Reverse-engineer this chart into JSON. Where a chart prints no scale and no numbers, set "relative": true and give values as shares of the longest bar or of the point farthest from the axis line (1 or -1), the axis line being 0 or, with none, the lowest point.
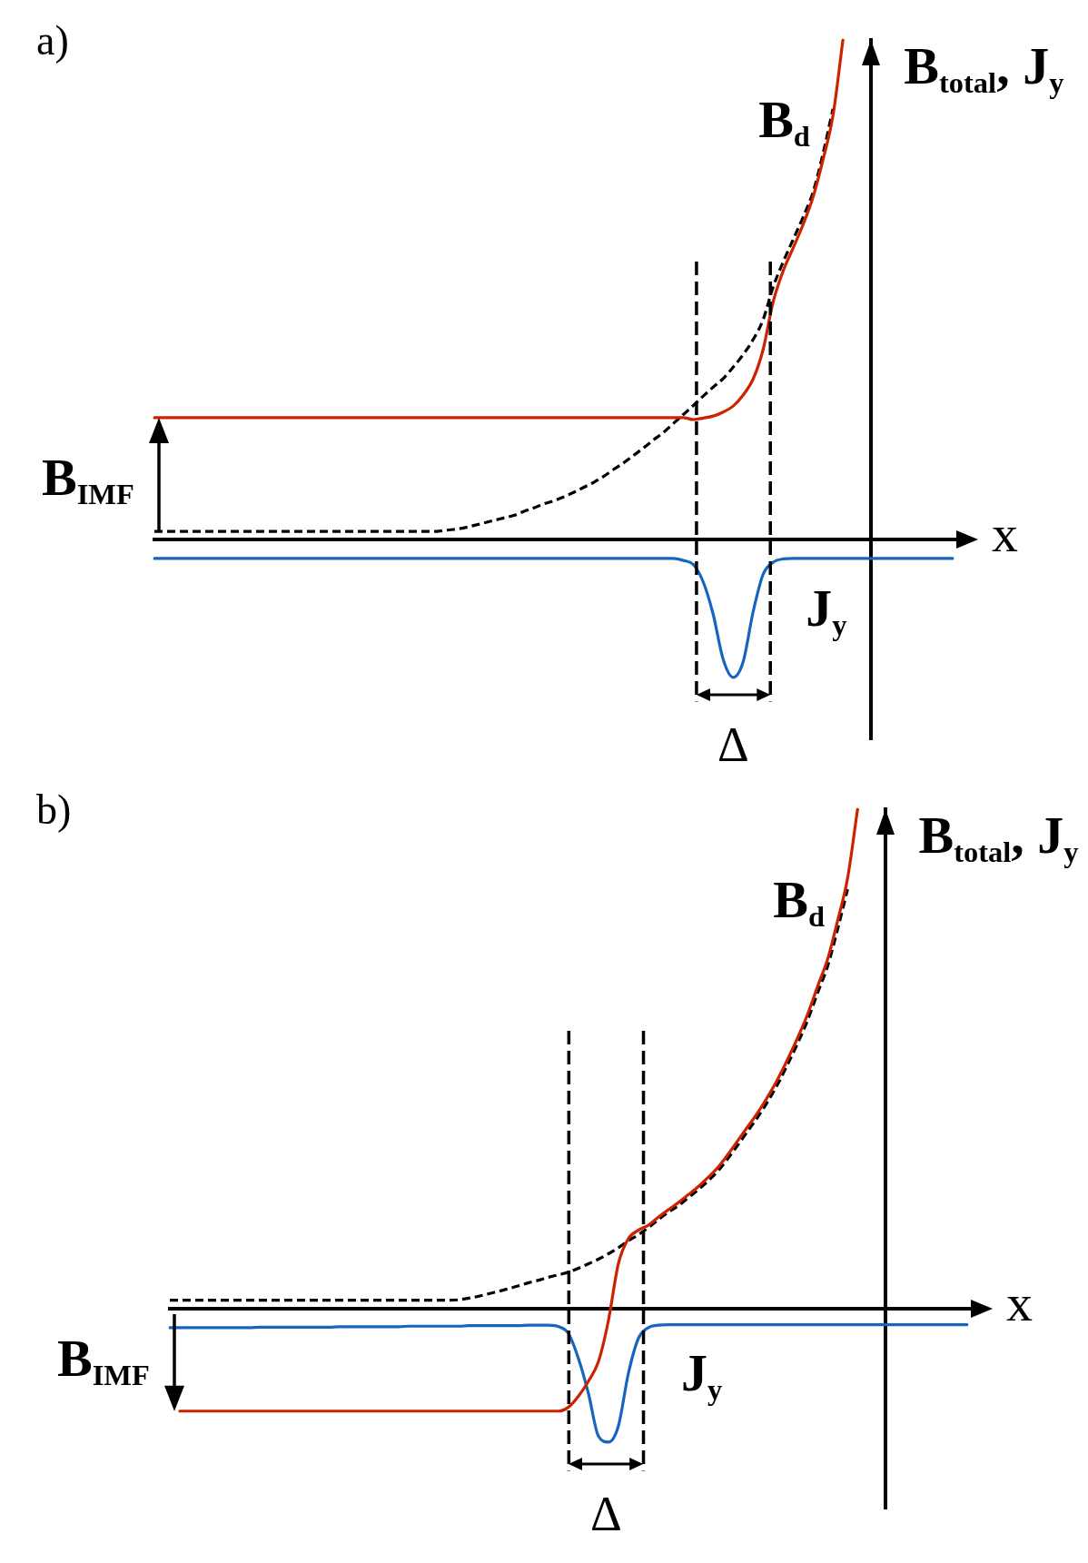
{
  "chart_data": [
    {
      "type": "line",
      "title": "a)",
      "xlabel": "x",
      "ylabel": "B$_{total}$, J$_{y}$",
      "relative": true,
      "categories": [
        null,
        null,
        null,
        null,
        null,
        null,
        null,
        null,
        null,
        null,
        null,
        null,
        null,
        null,
        null,
        null,
        null,
        null,
        null,
        null,
        null,
        null,
        null,
        null,
        null,
        null,
        null,
        null,
        null,
        null,
        null,
        null,
        null,
        null,
        null,
        null,
        null,
        null,
        null,
        null,
        null,
        null,
        null,
        null,
        null,
        null,
        null,
        null,
        null,
        null,
        null,
        null,
        null,
        null,
        null,
        null,
        null,
        null,
        null,
        null,
        null,
        null,
        null,
        null,
        null,
        null,
        null,
        null,
        null,
        null,
        null,
        null,
        null,
        null,
        null,
        null,
        null,
        null,
        null,
        null,
        null
      ],
      "series": [
        {
          "color": "#cc2200",
          "values": [
            0.244,
            0.244,
            0.244,
            0.244,
            0.244,
            0.244,
            0.244,
            0.244,
            0.244,
            0.244,
            0.244,
            0.244,
            0.244,
            0.244,
            0.244,
            0.244,
            0.244,
            0.244,
            0.244,
            0.244,
            0.244,
            0.244,
            0.244,
            0.244,
            0.244,
            0.244,
            0.244,
            0.244,
            0.244,
            0.244,
            0.244,
            0.244,
            0.244,
            0.244,
            0.244,
            0.244,
            0.244,
            0.244,
            0.244,
            0.244,
            0.244,
            0.244,
            0.244,
            0.244,
            0.244,
            0.244,
            0.244,
            0.244,
            0.244,
            0.244,
            0.244,
            0.244,
            0.244,
            0.244,
            0.24,
            0.243,
            0.247,
            0.255,
            0.267,
            0.289,
            0.321,
            0.38,
            0.475,
            0.537,
            0.583,
            0.63,
            0.685,
            0.76,
            0.848,
            1,
            null,
            null,
            null,
            null,
            null,
            null,
            null,
            null,
            null,
            null,
            null
          ]
        },
        {
          "name": "B$_{d}$",
          "color": "#000000",
          "line_style": "dashed",
          "values": [
            0.016,
            0.016,
            0.016,
            0.016,
            0.016,
            0.016,
            0.016,
            0.016,
            0.016,
            0.016,
            0.016,
            0.016,
            0.016,
            0.016,
            0.016,
            0.016,
            0.016,
            0.016,
            0.016,
            0.016,
            0.016,
            0.016,
            0.016,
            0.016,
            0.016,
            0.016,
            0.016,
            0.016,
            0.016,
            0.018,
            0.02,
            0.023,
            0.028,
            0.033,
            0.038,
            0.043,
            0.048,
            0.056,
            0.063,
            0.071,
            0.077,
            0.085,
            0.094,
            0.104,
            0.114,
            0.126,
            0.14,
            0.153,
            0.168,
            0.183,
            0.199,
            0.214,
            0.232,
            0.25,
            0.268,
            0.287,
            0.305,
            0.322,
            0.345,
            0.37,
            0.4,
            0.44,
            0.505,
            0.555,
            0.6,
            0.645,
            0.695,
            0.772,
            0.862,
            null,
            null,
            null,
            null,
            null,
            null,
            null,
            null,
            null,
            null,
            null,
            null
          ]
        },
        {
          "name": "J$_{y}$",
          "color": "#1565c0",
          "values": [
            -0.038,
            -0.038,
            -0.038,
            -0.038,
            -0.038,
            -0.038,
            -0.038,
            -0.038,
            -0.038,
            -0.038,
            -0.038,
            -0.038,
            -0.038,
            -0.038,
            -0.038,
            -0.038,
            -0.038,
            -0.038,
            -0.038,
            -0.038,
            -0.038,
            -0.038,
            -0.038,
            -0.038,
            -0.038,
            -0.038,
            -0.038,
            -0.038,
            -0.038,
            -0.038,
            -0.038,
            -0.038,
            -0.038,
            -0.038,
            -0.038,
            -0.038,
            -0.038,
            -0.038,
            -0.038,
            -0.038,
            -0.038,
            -0.038,
            -0.038,
            -0.038,
            -0.038,
            -0.038,
            -0.038,
            -0.038,
            -0.038,
            -0.038,
            -0.038,
            -0.038,
            -0.038,
            -0.042,
            -0.05,
            -0.085,
            -0.15,
            -0.24,
            -0.276,
            -0.245,
            -0.145,
            -0.07,
            -0.046,
            -0.039,
            -0.038,
            -0.038,
            -0.038,
            -0.038,
            -0.038,
            -0.038,
            -0.038,
            -0.038,
            -0.038,
            -0.038,
            -0.038,
            -0.038,
            -0.038,
            -0.038,
            -0.038,
            -0.038,
            -0.038
          ]
        }
      ],
      "annotations": [
        "B$_{IMF}$",
        "Δ"
      ]
    },
    {
      "type": "line",
      "title": "b)",
      "xlabel": "x",
      "ylabel": "B$_{total}$, J$_{y}$",
      "relative": true,
      "categories": [
        null,
        null,
        null,
        null,
        null,
        null,
        null,
        null,
        null,
        null,
        null,
        null,
        null,
        null,
        null,
        null,
        null,
        null,
        null,
        null,
        null,
        null,
        null,
        null,
        null,
        null,
        null,
        null,
        null,
        null,
        null,
        null,
        null,
        null,
        null,
        null,
        null,
        null,
        null,
        null,
        null,
        null,
        null,
        null,
        null,
        null,
        null,
        null,
        null,
        null,
        null,
        null,
        null,
        null,
        null,
        null,
        null,
        null,
        null,
        null,
        null,
        null,
        null,
        null,
        null,
        null,
        null,
        null,
        null,
        null,
        null,
        null,
        null,
        null,
        null,
        null,
        null,
        null,
        null,
        null,
        null
      ],
      "series": [
        {
          "color": "#cc2200",
          "values": [
            null,
            -0.205,
            -0.205,
            -0.205,
            -0.205,
            -0.205,
            -0.205,
            -0.205,
            -0.205,
            -0.205,
            -0.205,
            -0.205,
            -0.205,
            -0.205,
            -0.205,
            -0.205,
            -0.205,
            -0.205,
            -0.205,
            -0.205,
            -0.205,
            -0.205,
            -0.205,
            -0.205,
            -0.205,
            -0.205,
            -0.205,
            -0.205,
            -0.205,
            -0.205,
            -0.205,
            -0.205,
            -0.205,
            -0.205,
            -0.205,
            -0.205,
            -0.205,
            -0.205,
            -0.205,
            -0.205,
            -0.197,
            -0.175,
            -0.145,
            -0.106,
            -0.024,
            0.09,
            0.14,
            0.157,
            0.167,
            0.183,
            0.198,
            0.212,
            0.228,
            0.244,
            0.263,
            0.283,
            0.309,
            0.337,
            0.365,
            0.393,
            0.425,
            0.46,
            0.5,
            0.543,
            0.59,
            0.646,
            0.7,
            0.777,
            0.862,
            1,
            null,
            null,
            null,
            null,
            null,
            null,
            null,
            null,
            null,
            null,
            null
          ]
        },
        {
          "name": "B$_{d}$",
          "color": "#000000",
          "line_style": "dashed",
          "values": [
            0.017,
            0.017,
            0.017,
            0.017,
            0.017,
            0.017,
            0.017,
            0.017,
            0.017,
            0.017,
            0.017,
            0.017,
            0.017,
            0.017,
            0.017,
            0.017,
            0.017,
            0.017,
            0.017,
            0.017,
            0.017,
            0.017,
            0.017,
            0.017,
            0.017,
            0.017,
            0.017,
            0.017,
            0.017,
            0.018,
            0.021,
            0.025,
            0.03,
            0.035,
            0.04,
            0.046,
            0.052,
            0.057,
            0.063,
            0.068,
            0.073,
            0.081,
            0.09,
            0.099,
            0.11,
            0.122,
            0.136,
            0.148,
            0.162,
            0.178,
            0.193,
            0.206,
            0.222,
            0.238,
            0.256,
            0.276,
            0.301,
            0.328,
            0.356,
            0.384,
            0.415,
            0.45,
            0.49,
            0.532,
            0.578,
            0.633,
            0.686,
            0.76,
            0.84,
            null,
            null,
            null,
            null,
            null,
            null,
            null,
            null,
            null,
            null,
            null,
            null
          ]
        },
        {
          "name": "J$_{y}$",
          "color": "#1565c0",
          "values": [
            -0.038,
            -0.038,
            -0.038,
            -0.038,
            -0.038,
            -0.038,
            -0.038,
            -0.038,
            -0.038,
            -0.037,
            -0.037,
            -0.037,
            -0.037,
            -0.037,
            -0.037,
            -0.037,
            -0.037,
            -0.036,
            -0.036,
            -0.036,
            -0.036,
            -0.036,
            -0.036,
            -0.036,
            -0.035,
            -0.035,
            -0.035,
            -0.035,
            -0.035,
            -0.035,
            -0.034,
            -0.034,
            -0.034,
            -0.034,
            -0.034,
            -0.034,
            -0.033,
            -0.033,
            -0.033,
            -0.036,
            -0.05,
            -0.1,
            -0.17,
            -0.255,
            -0.267,
            -0.235,
            -0.13,
            -0.06,
            -0.038,
            -0.033,
            -0.032,
            -0.032,
            -0.032,
            -0.032,
            -0.032,
            -0.032,
            -0.032,
            -0.032,
            -0.032,
            -0.032,
            -0.032,
            -0.032,
            -0.032,
            -0.032,
            -0.032,
            -0.032,
            -0.032,
            -0.032,
            -0.032,
            -0.032,
            -0.032,
            -0.032,
            -0.032,
            -0.032,
            -0.032,
            -0.032,
            -0.032,
            -0.032,
            -0.032,
            -0.032,
            -0.032
          ]
        }
      ],
      "annotations": [
        "B$_{IMF}$",
        "Δ"
      ]
    }
  ]
}
